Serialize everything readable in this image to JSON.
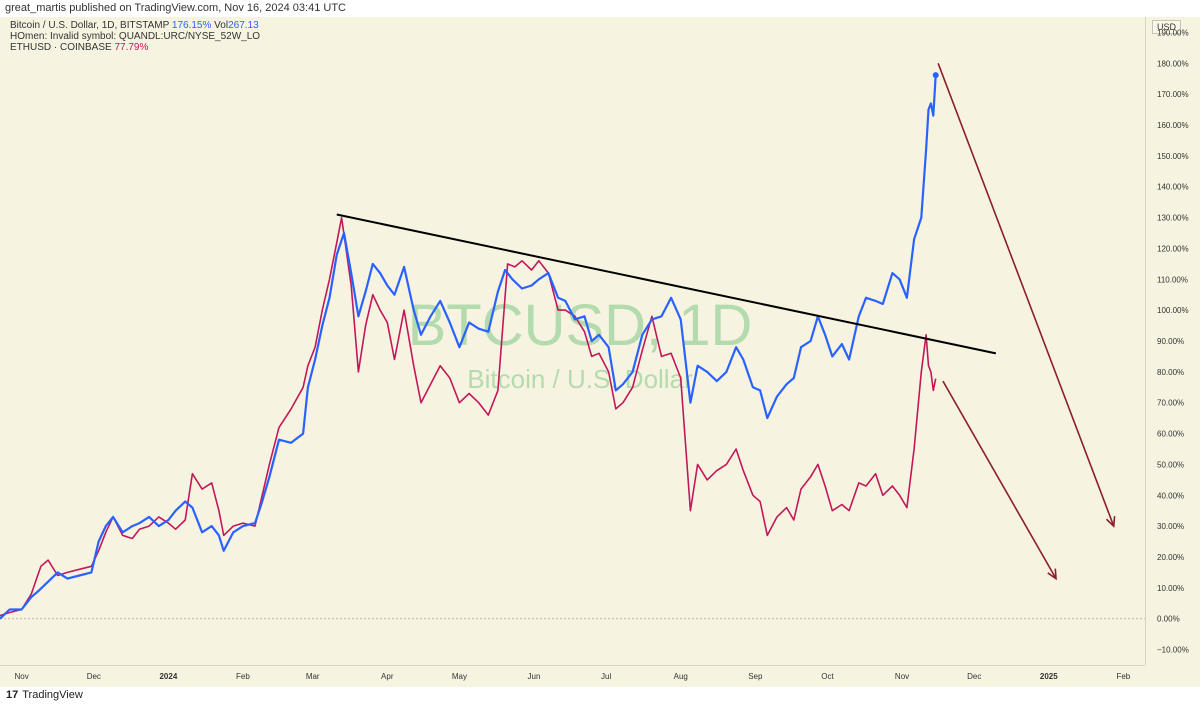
{
  "header": {
    "published": "great_martis published on TradingView.com, Nov 16, 2024 03:41 UTC"
  },
  "legend": {
    "row1_label": "Bitcoin / U.S. Dollar, 1D, BITSTAMP",
    "row1_value": "176.15%",
    "row1_vol_label": "Vol",
    "row1_vol_value": "267.13",
    "row2_label": "HOmen: Invalid symbol: QUANDL:URC/NYSE_52W_LO",
    "row3_label": "ETHUSD · COINBASE",
    "row3_value": "77.79%"
  },
  "watermark": {
    "symbol": "BTCUSD, 1D",
    "name": "Bitcoin / U.S. Dollar"
  },
  "price_axis": {
    "currency": "USD"
  },
  "footer": {
    "logo": "17",
    "brand": "TradingView"
  },
  "colors": {
    "btc": "#2962ff",
    "eth": "#c2185b",
    "trendline": "#000000",
    "arrows": "#8b1e2d",
    "watermark": "#9ed39e"
  },
  "chart_data": {
    "type": "line",
    "scale": "percent",
    "ylim": [
      -15,
      195
    ],
    "yticks": [
      -10,
      0,
      10,
      20,
      30,
      40,
      50,
      60,
      70,
      80,
      90,
      100,
      110,
      120,
      130,
      140,
      150,
      160,
      170,
      180,
      190
    ],
    "ytick_labels": [
      "−10.00%",
      "0.00%",
      "10.00%",
      "20.00%",
      "30.00%",
      "40.00%",
      "50.00%",
      "60.00%",
      "70.00%",
      "80.00%",
      "90.00%",
      "100.00%",
      "110.00%",
      "120.00%",
      "130.00%",
      "140.00%",
      "150.00%",
      "160.00%",
      "170.00%",
      "180.00%",
      "190.00%"
    ],
    "xlim": [
      "2023-10-23",
      "2025-02-10"
    ],
    "xticks": [
      {
        "label": "Nov",
        "date": "2023-11-01"
      },
      {
        "label": "Dec",
        "date": "2023-12-01"
      },
      {
        "label": "2024",
        "date": "2024-01-01",
        "bold": true
      },
      {
        "label": "Feb",
        "date": "2024-02-01"
      },
      {
        "label": "Mar",
        "date": "2024-03-01"
      },
      {
        "label": "Apr",
        "date": "2024-04-01"
      },
      {
        "label": "May",
        "date": "2024-05-01"
      },
      {
        "label": "Jun",
        "date": "2024-06-01"
      },
      {
        "label": "Jul",
        "date": "2024-07-01"
      },
      {
        "label": "Aug",
        "date": "2024-08-01"
      },
      {
        "label": "Sep",
        "date": "2024-09-01"
      },
      {
        "label": "Oct",
        "date": "2024-10-01"
      },
      {
        "label": "Nov",
        "date": "2024-11-01"
      },
      {
        "label": "Dec",
        "date": "2024-12-01"
      },
      {
        "label": "2025",
        "date": "2025-01-01",
        "bold": true
      },
      {
        "label": "Feb",
        "date": "2025-02-01"
      }
    ],
    "series": [
      {
        "name": "Bitcoin / U.S. Dollar, 1D, BITSTAMP",
        "color": "#2962ff",
        "points": [
          [
            "2023-10-23",
            0
          ],
          [
            "2023-10-27",
            3
          ],
          [
            "2023-11-01",
            3
          ],
          [
            "2023-11-05",
            7
          ],
          [
            "2023-11-08",
            9
          ],
          [
            "2023-11-12",
            12
          ],
          [
            "2023-11-16",
            15
          ],
          [
            "2023-11-20",
            13
          ],
          [
            "2023-11-25",
            14
          ],
          [
            "2023-11-30",
            15
          ],
          [
            "2023-12-03",
            25
          ],
          [
            "2023-12-06",
            30
          ],
          [
            "2023-12-09",
            33
          ],
          [
            "2023-12-13",
            28
          ],
          [
            "2023-12-17",
            30
          ],
          [
            "2023-12-20",
            31
          ],
          [
            "2023-12-24",
            33
          ],
          [
            "2023-12-28",
            30
          ],
          [
            "2024-01-01",
            32
          ],
          [
            "2024-01-04",
            35
          ],
          [
            "2024-01-08",
            38
          ],
          [
            "2024-01-11",
            36
          ],
          [
            "2024-01-15",
            28
          ],
          [
            "2024-01-19",
            30
          ],
          [
            "2024-01-22",
            27
          ],
          [
            "2024-01-24",
            22
          ],
          [
            "2024-01-28",
            28
          ],
          [
            "2024-02-01",
            30
          ],
          [
            "2024-02-06",
            31
          ],
          [
            "2024-02-09",
            38
          ],
          [
            "2024-02-12",
            46
          ],
          [
            "2024-02-16",
            58
          ],
          [
            "2024-02-21",
            57
          ],
          [
            "2024-02-26",
            60
          ],
          [
            "2024-02-28",
            75
          ],
          [
            "2024-03-02",
            84
          ],
          [
            "2024-03-05",
            95
          ],
          [
            "2024-03-08",
            104
          ],
          [
            "2024-03-11",
            118
          ],
          [
            "2024-03-14",
            125
          ],
          [
            "2024-03-17",
            112
          ],
          [
            "2024-03-20",
            98
          ],
          [
            "2024-03-23",
            106
          ],
          [
            "2024-03-26",
            115
          ],
          [
            "2024-03-29",
            112
          ],
          [
            "2024-04-01",
            108
          ],
          [
            "2024-04-04",
            105
          ],
          [
            "2024-04-08",
            114
          ],
          [
            "2024-04-12",
            100
          ],
          [
            "2024-04-15",
            92
          ],
          [
            "2024-04-19",
            98
          ],
          [
            "2024-04-23",
            103
          ],
          [
            "2024-04-27",
            96
          ],
          [
            "2024-05-01",
            88
          ],
          [
            "2024-05-05",
            96
          ],
          [
            "2024-05-09",
            94
          ],
          [
            "2024-05-13",
            93
          ],
          [
            "2024-05-17",
            106
          ],
          [
            "2024-05-20",
            113
          ],
          [
            "2024-05-23",
            110
          ],
          [
            "2024-05-27",
            107
          ],
          [
            "2024-05-31",
            108
          ],
          [
            "2024-06-03",
            110
          ],
          [
            "2024-06-07",
            112
          ],
          [
            "2024-06-11",
            104
          ],
          [
            "2024-06-14",
            103
          ],
          [
            "2024-06-18",
            97
          ],
          [
            "2024-06-22",
            98
          ],
          [
            "2024-06-25",
            90
          ],
          [
            "2024-06-28",
            92
          ],
          [
            "2024-07-02",
            88
          ],
          [
            "2024-07-05",
            74
          ],
          [
            "2024-07-08",
            76
          ],
          [
            "2024-07-12",
            80
          ],
          [
            "2024-07-16",
            92
          ],
          [
            "2024-07-20",
            97
          ],
          [
            "2024-07-24",
            98
          ],
          [
            "2024-07-28",
            104
          ],
          [
            "2024-08-01",
            97
          ],
          [
            "2024-08-05",
            70
          ],
          [
            "2024-08-08",
            82
          ],
          [
            "2024-08-12",
            80
          ],
          [
            "2024-08-16",
            77
          ],
          [
            "2024-08-20",
            80
          ],
          [
            "2024-08-24",
            88
          ],
          [
            "2024-08-27",
            84
          ],
          [
            "2024-08-31",
            75
          ],
          [
            "2024-09-03",
            74
          ],
          [
            "2024-09-06",
            65
          ],
          [
            "2024-09-10",
            72
          ],
          [
            "2024-09-14",
            76
          ],
          [
            "2024-09-17",
            78
          ],
          [
            "2024-09-20",
            88
          ],
          [
            "2024-09-24",
            90
          ],
          [
            "2024-09-27",
            98
          ],
          [
            "2024-09-30",
            92
          ],
          [
            "2024-10-03",
            85
          ],
          [
            "2024-10-07",
            89
          ],
          [
            "2024-10-10",
            84
          ],
          [
            "2024-10-14",
            98
          ],
          [
            "2024-10-17",
            104
          ],
          [
            "2024-10-21",
            103
          ],
          [
            "2024-10-24",
            102
          ],
          [
            "2024-10-28",
            112
          ],
          [
            "2024-10-31",
            110
          ],
          [
            "2024-11-03",
            104
          ],
          [
            "2024-11-06",
            123
          ],
          [
            "2024-11-09",
            130
          ],
          [
            "2024-11-11",
            152
          ],
          [
            "2024-11-12",
            165
          ],
          [
            "2024-11-13",
            167
          ],
          [
            "2024-11-14",
            163
          ],
          [
            "2024-11-15",
            176.15
          ]
        ]
      },
      {
        "name": "ETHUSD · COINBASE",
        "color": "#c2185b",
        "points": [
          [
            "2023-10-23",
            1
          ],
          [
            "2023-10-27",
            2
          ],
          [
            "2023-11-01",
            3
          ],
          [
            "2023-11-05",
            8
          ],
          [
            "2023-11-09",
            17
          ],
          [
            "2023-11-12",
            19
          ],
          [
            "2023-11-16",
            14
          ],
          [
            "2023-11-20",
            15
          ],
          [
            "2023-11-25",
            16
          ],
          [
            "2023-11-30",
            17
          ],
          [
            "2023-12-03",
            22
          ],
          [
            "2023-12-06",
            28
          ],
          [
            "2023-12-09",
            33
          ],
          [
            "2023-12-13",
            27
          ],
          [
            "2023-12-17",
            26
          ],
          [
            "2023-12-20",
            29
          ],
          [
            "2023-12-24",
            30
          ],
          [
            "2023-12-28",
            33
          ],
          [
            "2024-01-01",
            31
          ],
          [
            "2024-01-04",
            29
          ],
          [
            "2024-01-08",
            32
          ],
          [
            "2024-01-11",
            47
          ],
          [
            "2024-01-15",
            42
          ],
          [
            "2024-01-19",
            44
          ],
          [
            "2024-01-22",
            35
          ],
          [
            "2024-01-24",
            27
          ],
          [
            "2024-01-28",
            30
          ],
          [
            "2024-02-01",
            31
          ],
          [
            "2024-02-06",
            30
          ],
          [
            "2024-02-09",
            40
          ],
          [
            "2024-02-12",
            50
          ],
          [
            "2024-02-16",
            62
          ],
          [
            "2024-02-21",
            68
          ],
          [
            "2024-02-26",
            75
          ],
          [
            "2024-02-28",
            82
          ],
          [
            "2024-03-02",
            88
          ],
          [
            "2024-03-05",
            100
          ],
          [
            "2024-03-08",
            110
          ],
          [
            "2024-03-11",
            122
          ],
          [
            "2024-03-13",
            130
          ],
          [
            "2024-03-17",
            108
          ],
          [
            "2024-03-20",
            80
          ],
          [
            "2024-03-23",
            95
          ],
          [
            "2024-03-26",
            105
          ],
          [
            "2024-03-29",
            100
          ],
          [
            "2024-04-01",
            96
          ],
          [
            "2024-04-04",
            84
          ],
          [
            "2024-04-08",
            100
          ],
          [
            "2024-04-12",
            82
          ],
          [
            "2024-04-15",
            70
          ],
          [
            "2024-04-19",
            76
          ],
          [
            "2024-04-23",
            82
          ],
          [
            "2024-04-27",
            78
          ],
          [
            "2024-05-01",
            70
          ],
          [
            "2024-05-05",
            73
          ],
          [
            "2024-05-09",
            70
          ],
          [
            "2024-05-13",
            66
          ],
          [
            "2024-05-17",
            74
          ],
          [
            "2024-05-21",
            115
          ],
          [
            "2024-05-24",
            114
          ],
          [
            "2024-05-27",
            116
          ],
          [
            "2024-05-31",
            113
          ],
          [
            "2024-06-03",
            116
          ],
          [
            "2024-06-07",
            112
          ],
          [
            "2024-06-11",
            100
          ],
          [
            "2024-06-14",
            100
          ],
          [
            "2024-06-18",
            98
          ],
          [
            "2024-06-22",
            93
          ],
          [
            "2024-06-25",
            85
          ],
          [
            "2024-06-28",
            86
          ],
          [
            "2024-07-02",
            80
          ],
          [
            "2024-07-05",
            68
          ],
          [
            "2024-07-08",
            70
          ],
          [
            "2024-07-12",
            75
          ],
          [
            "2024-07-16",
            87
          ],
          [
            "2024-07-20",
            98
          ],
          [
            "2024-07-24",
            85
          ],
          [
            "2024-07-28",
            86
          ],
          [
            "2024-08-01",
            78
          ],
          [
            "2024-08-05",
            35
          ],
          [
            "2024-08-08",
            50
          ],
          [
            "2024-08-12",
            45
          ],
          [
            "2024-08-16",
            48
          ],
          [
            "2024-08-20",
            50
          ],
          [
            "2024-08-24",
            55
          ],
          [
            "2024-08-27",
            48
          ],
          [
            "2024-08-31",
            40
          ],
          [
            "2024-09-03",
            38
          ],
          [
            "2024-09-06",
            27
          ],
          [
            "2024-09-10",
            33
          ],
          [
            "2024-09-14",
            36
          ],
          [
            "2024-09-17",
            32
          ],
          [
            "2024-09-20",
            42
          ],
          [
            "2024-09-24",
            46
          ],
          [
            "2024-09-27",
            50
          ],
          [
            "2024-09-30",
            43
          ],
          [
            "2024-10-03",
            35
          ],
          [
            "2024-10-07",
            37
          ],
          [
            "2024-10-10",
            35
          ],
          [
            "2024-10-14",
            44
          ],
          [
            "2024-10-17",
            43
          ],
          [
            "2024-10-21",
            47
          ],
          [
            "2024-10-24",
            40
          ],
          [
            "2024-10-28",
            43
          ],
          [
            "2024-10-31",
            40
          ],
          [
            "2024-11-03",
            36
          ],
          [
            "2024-11-06",
            55
          ],
          [
            "2024-11-09",
            80
          ],
          [
            "2024-11-11",
            92
          ],
          [
            "2024-11-12",
            82
          ],
          [
            "2024-11-13",
            80
          ],
          [
            "2024-11-14",
            74
          ],
          [
            "2024-11-15",
            77.79
          ]
        ]
      }
    ],
    "annotations": {
      "trendline": [
        [
          "2024-03-11",
          131
        ],
        [
          "2024-12-10",
          86
        ]
      ],
      "arrows": [
        {
          "from": [
            "2024-11-16",
            180
          ],
          "to": [
            "2025-01-28",
            30
          ]
        },
        {
          "from": [
            "2024-11-18",
            77
          ],
          "to": [
            "2025-01-04",
            13
          ]
        }
      ]
    }
  }
}
